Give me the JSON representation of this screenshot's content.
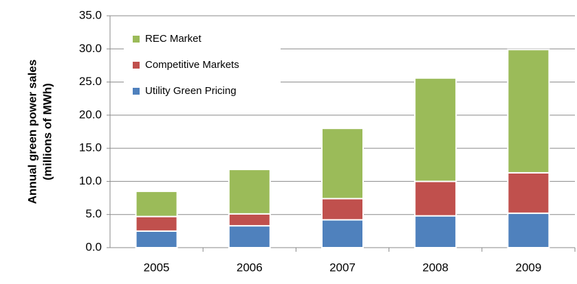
{
  "chart_data": {
    "type": "stacked_bar",
    "ylabel": [
      "Annual green power sales",
      "(millions of MWh)"
    ],
    "categories": [
      "2005",
      "2006",
      "2007",
      "2008",
      "2009"
    ],
    "series": [
      {
        "name": "Utility Green Pricing",
        "color": "#4f81bd",
        "values": [
          2.5,
          3.3,
          4.2,
          4.8,
          5.2
        ]
      },
      {
        "name": "Competitive Markets",
        "color": "#c0504d",
        "values": [
          2.2,
          1.8,
          3.2,
          5.2,
          6.1
        ]
      },
      {
        "name": "REC Market",
        "color": "#9bbb59",
        "values": [
          3.8,
          6.7,
          10.6,
          15.6,
          18.6
        ]
      }
    ],
    "ylim": [
      0,
      35
    ],
    "yticks": [
      {
        "value": 0,
        "label": "0.0"
      },
      {
        "value": 5,
        "label": "5.0"
      },
      {
        "value": 10,
        "label": "10.0"
      },
      {
        "value": 15,
        "label": "15.0"
      },
      {
        "value": 20,
        "label": "20.0"
      },
      {
        "value": 25,
        "label": "25.0"
      },
      {
        "value": 30,
        "label": "30.0"
      },
      {
        "value": 35,
        "label": "35.0"
      }
    ],
    "grid": true,
    "legend": "top-left"
  }
}
